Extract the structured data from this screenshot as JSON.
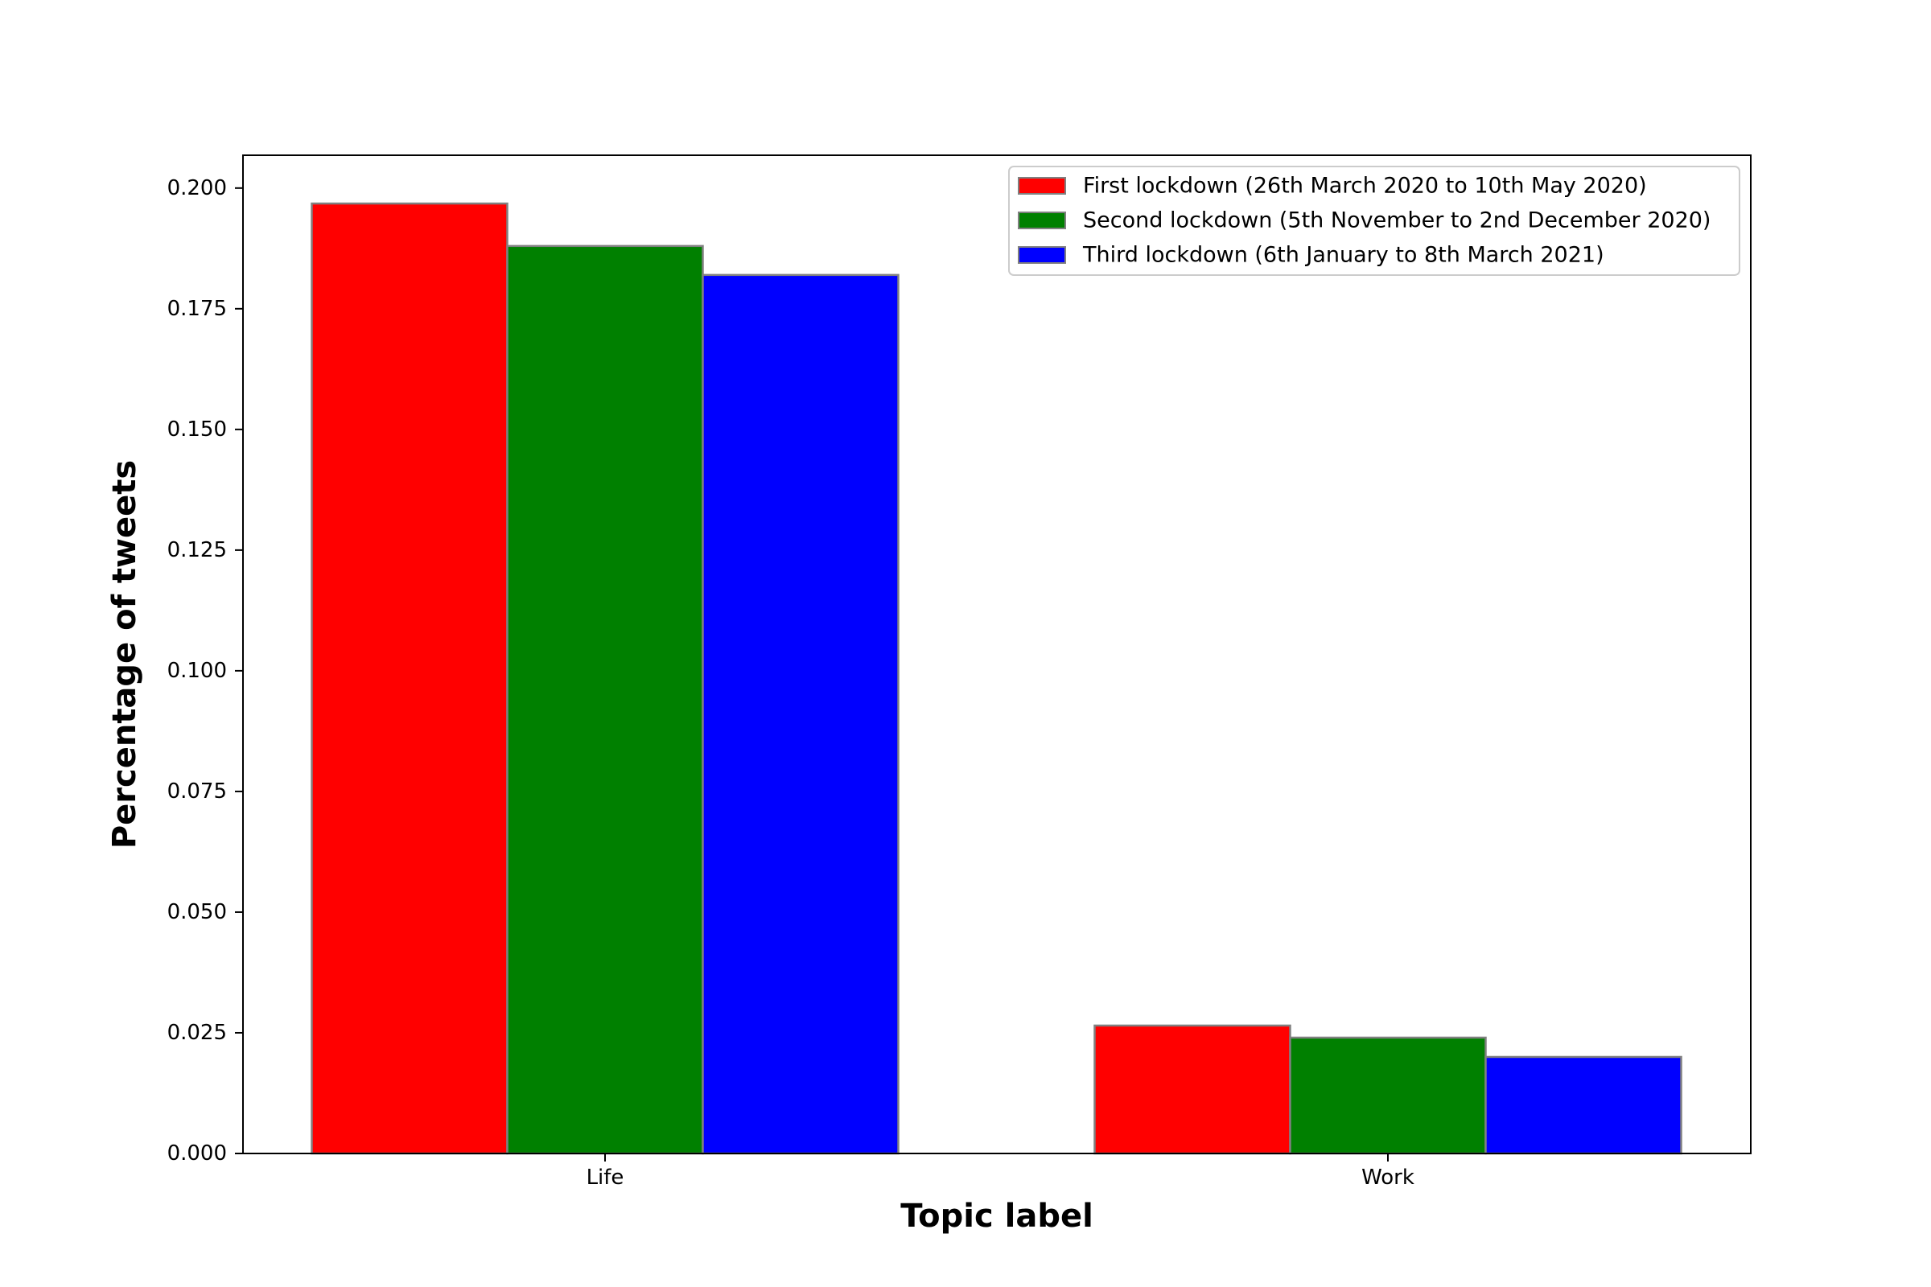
{
  "chart_data": {
    "type": "bar",
    "categories": [
      "Life",
      "Work"
    ],
    "series": [
      {
        "name": "First lockdown (26th March 2020 to 10th May 2020)",
        "values": [
          0.1968,
          0.0265
        ],
        "color": "#ff0000"
      },
      {
        "name": "Second lockdown (5th November to 2nd December 2020)",
        "values": [
          0.188,
          0.024
        ],
        "color": "#008000"
      },
      {
        "name": "Third lockdown (6th January to 8th March 2021)",
        "values": [
          0.182,
          0.02
        ],
        "color": "#0000ff"
      }
    ],
    "bar_edge_color": "#808080",
    "xlabel": "Topic label",
    "ylabel": "Percentage of tweets",
    "ylim": [
      0,
      0.2068
    ],
    "yticks": [
      0.0,
      0.025,
      0.05,
      0.075,
      0.1,
      0.125,
      0.15,
      0.175,
      0.2
    ],
    "ytick_labels": [
      "0.000",
      "0.025",
      "0.050",
      "0.075",
      "0.100",
      "0.125",
      "0.150",
      "0.175",
      "0.200"
    ],
    "grid": false,
    "legend_position": "top-right"
  }
}
